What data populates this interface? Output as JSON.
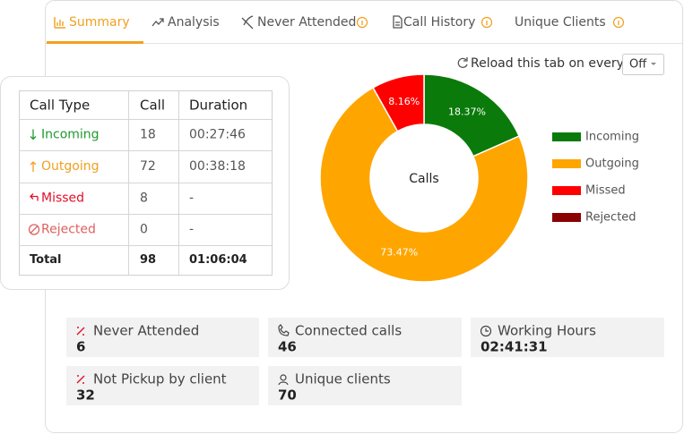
{
  "tabs": [
    "Summary",
    "Analysis",
    "Never Attended",
    "Call History",
    "Unique Clients"
  ],
  "reload": {
    "label": "Reload this tab on every",
    "value": "Off"
  },
  "table": {
    "header": [
      "Call Type",
      "Call",
      "Duration"
    ],
    "rows": [
      [
        "Incoming",
        18,
        "00:27:46"
      ],
      [
        "Outgoing",
        72,
        "00:38:18"
      ],
      [
        "Missed",
        8,
        "-"
      ],
      [
        "Rejected",
        0,
        "-"
      ],
      [
        "Total",
        98,
        "01:06:04"
      ]
    ]
  },
  "chart_data": {
    "type": "pie",
    "center_label": "Calls",
    "categories": [
      "Incoming",
      "Outgoing",
      "Missed",
      "Rejected"
    ],
    "values": [
      18.37,
      73.47,
      8.16,
      0
    ],
    "value_labels": [
      "18.37%",
      "73.47%",
      "8.16%",
      null
    ],
    "colors": [
      "#0a7a0a",
      "#ffa500",
      "#ff0000",
      "#8b0000"
    ]
  },
  "stats": [
    {
      "label": "Never Attended",
      "value": 6
    },
    {
      "label": "Connected calls",
      "value": 46
    },
    {
      "label": "Working Hours",
      "value": "02:41:31"
    },
    {
      "label": "Not Pickup by client",
      "value": 32
    },
    {
      "label": "Unique clients",
      "value": 70
    }
  ]
}
